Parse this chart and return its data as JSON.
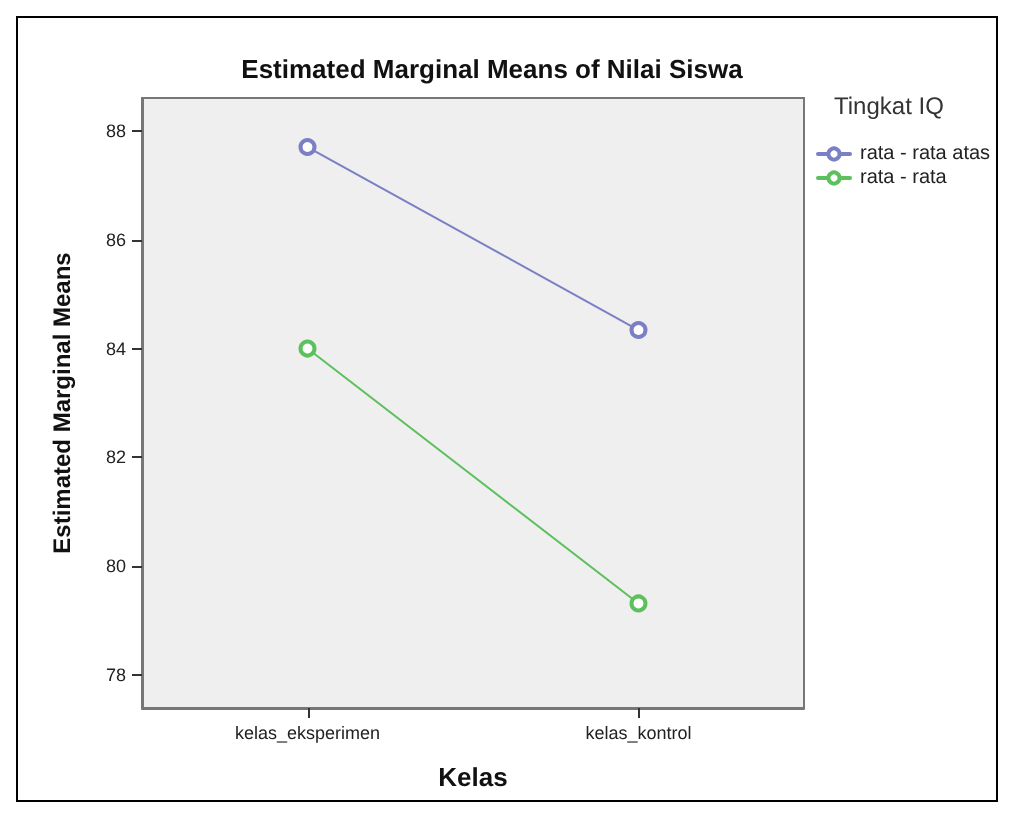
{
  "chart_data": {
    "type": "line",
    "title": "Estimated Marginal Means of Nilai Siswa",
    "xlabel": "Kelas",
    "ylabel": "Estimated Marginal Means",
    "legend_title": "Tingkat IQ",
    "categories": [
      "kelas_eksperimen",
      "kelas_kontrol"
    ],
    "series": [
      {
        "name": "rata - rata atas",
        "color": "#7b7fc4",
        "values": [
          87.7,
          84.34
        ]
      },
      {
        "name": "rata - rata",
        "color": "#5cc05c",
        "values": [
          84.0,
          79.32
        ]
      }
    ],
    "ylim": [
      77.4,
      88.6
    ],
    "yticks": [
      78,
      80,
      82,
      84,
      86,
      88
    ],
    "grid": false,
    "legend": "top right",
    "marker": "circle",
    "line_style": "solid"
  }
}
